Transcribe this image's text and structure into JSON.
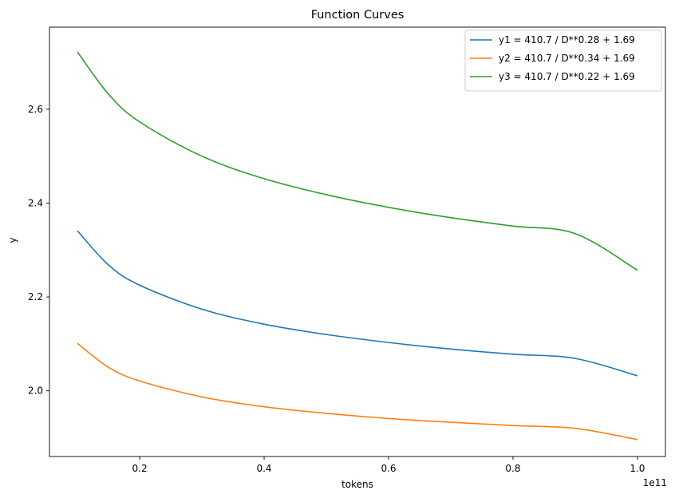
{
  "chart_data": {
    "type": "line",
    "title": "Function Curves",
    "xlabel": "tokens",
    "ylabel": "y",
    "x_offset_label": "1e11",
    "xlim": [
      0.055,
      1.045
    ],
    "ylim": [
      1.86,
      2.775
    ],
    "xticks": [
      0.2,
      0.4,
      0.6,
      0.8,
      1.0
    ],
    "xtick_labels": [
      "0.2",
      "0.4",
      "0.6",
      "0.8",
      "1.0"
    ],
    "yticks": [
      2.0,
      2.2,
      2.4,
      2.6
    ],
    "ytick_labels": [
      "2.0",
      "2.2",
      "2.4",
      "2.6"
    ],
    "grid": false,
    "legend_position": "upper-right",
    "series": [
      {
        "name": "y1 = 410.7 / D**0.28 + 1.69",
        "color": "#1f77b4",
        "x": [
          0.1,
          0.15,
          0.2,
          0.3,
          0.4,
          0.5,
          0.6,
          0.7,
          0.8,
          0.9,
          1.0
        ],
        "y": [
          2.341,
          2.268,
          2.225,
          2.174,
          2.142,
          2.12,
          2.103,
          2.089,
          2.078,
          2.069,
          2.032
        ]
      },
      {
        "name": "y2 = 410.7 / D**0.34 + 1.69",
        "color": "#ff7f0e",
        "x": [
          0.1,
          0.15,
          0.2,
          0.3,
          0.4,
          0.5,
          0.6,
          0.7,
          0.8,
          0.9,
          1.0
        ],
        "y": [
          2.101,
          2.05,
          2.021,
          1.987,
          1.966,
          1.952,
          1.941,
          1.933,
          1.926,
          1.92,
          1.896
        ]
      },
      {
        "name": "y3 = 410.7 / D**0.22 + 1.69",
        "color": "#2ca02c",
        "x": [
          0.1,
          0.15,
          0.2,
          0.3,
          0.4,
          0.5,
          0.6,
          0.7,
          0.8,
          0.9,
          1.0
        ],
        "y": [
          2.722,
          2.632,
          2.573,
          2.5,
          2.452,
          2.418,
          2.391,
          2.369,
          2.351,
          2.335,
          2.257
        ]
      }
    ]
  }
}
